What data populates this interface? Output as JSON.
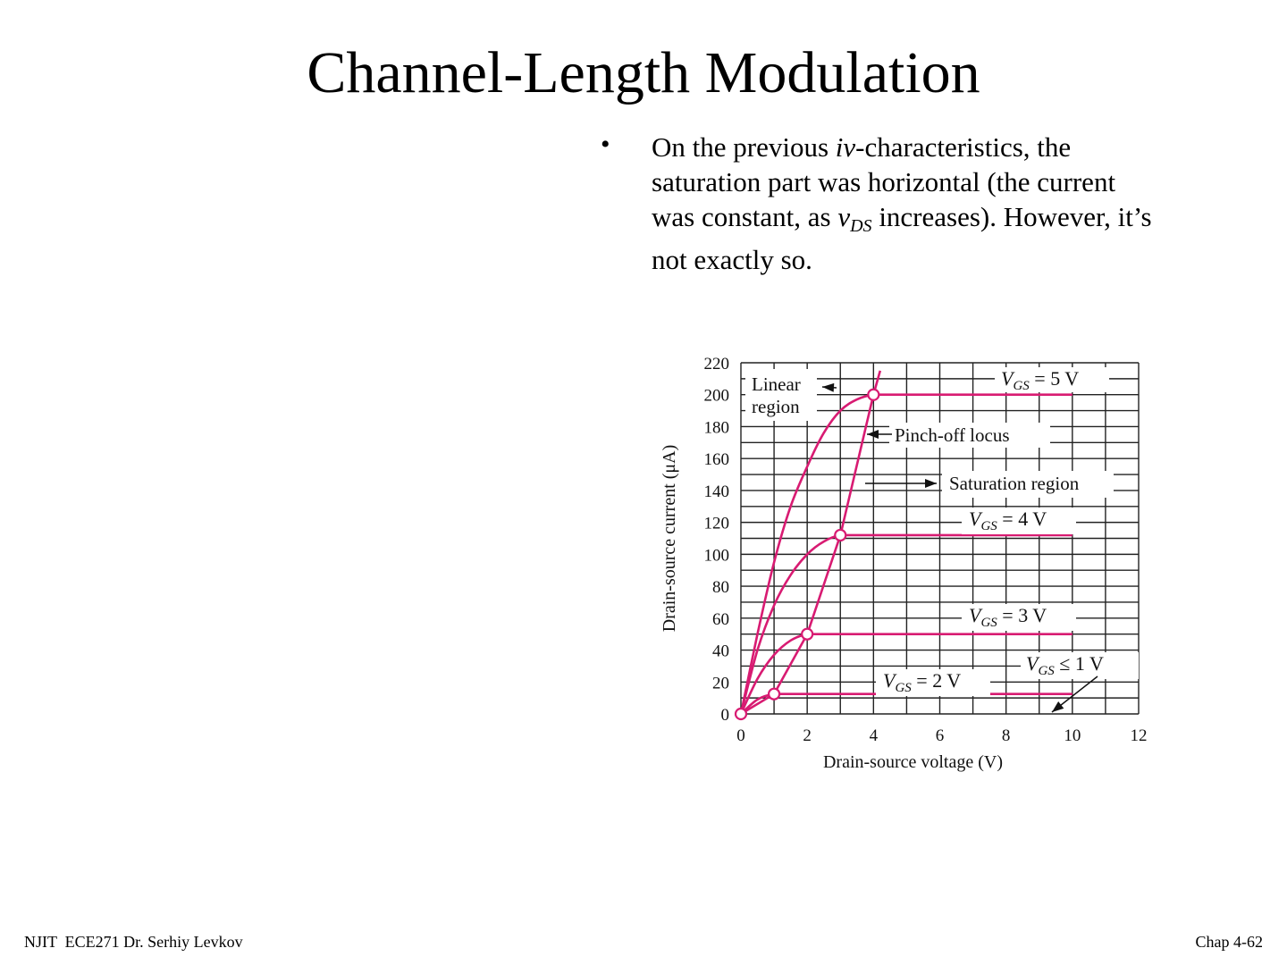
{
  "title": "Channel-Length Modulation",
  "bullet": {
    "line1_a": "On the previous ",
    "line1_iv": "iv",
    "line1_b": "-characteristics, the",
    "line2": "saturation part was horizontal (the current",
    "line3_a": "was constant, as ",
    "line3_v": "v",
    "line3_sub": "DS",
    "line3_b": " increases). However, it’s",
    "line4": "not exactly so."
  },
  "figure": {
    "accent_color": "#d81b72",
    "grid_color": "#222222",
    "y_label": "Drain-source current (μA)",
    "x_label": "Drain-source voltage (V)",
    "annotations": {
      "linear": [
        "Linear",
        "region"
      ],
      "pinchoff": "Pinch-off locus",
      "saturation": "Saturation region"
    },
    "curve_labels": [
      {
        "var": "V",
        "sub": "GS",
        "rest": " = 5 V"
      },
      {
        "var": "V",
        "sub": "GS",
        "rest": " = 4 V"
      },
      {
        "var": "V",
        "sub": "GS",
        "rest": " = 3 V"
      },
      {
        "var": "V",
        "sub": "GS",
        "rest": " = 2 V"
      },
      {
        "var": "V",
        "sub": "GS",
        "rest": " ≤ 1 V"
      }
    ]
  },
  "chart_data": {
    "type": "line",
    "xlabel": "Drain-source voltage (V)",
    "ylabel": "Drain-source current (μA)",
    "xlim": [
      0,
      12
    ],
    "ylim": [
      0,
      220
    ],
    "x_ticks": [
      0,
      2,
      4,
      6,
      8,
      10,
      12
    ],
    "y_ticks": [
      0,
      20,
      40,
      60,
      80,
      100,
      120,
      140,
      160,
      180,
      200,
      220
    ],
    "grid": true,
    "series": [
      {
        "name": "VGS = 5 V",
        "points": [
          [
            0,
            0
          ],
          [
            0.5,
            50
          ],
          [
            1,
            95
          ],
          [
            1.5,
            130
          ],
          [
            2,
            155
          ],
          [
            2.5,
            176
          ],
          [
            3,
            190
          ],
          [
            3.5,
            197
          ],
          [
            4,
            200
          ],
          [
            10,
            200
          ]
        ]
      },
      {
        "name": "VGS = 4 V",
        "points": [
          [
            0,
            0
          ],
          [
            0.5,
            40
          ],
          [
            1,
            68
          ],
          [
            1.5,
            87
          ],
          [
            2,
            100
          ],
          [
            2.5,
            108
          ],
          [
            3,
            112
          ],
          [
            10,
            112
          ]
        ]
      },
      {
        "name": "VGS = 3 V",
        "points": [
          [
            0,
            0
          ],
          [
            0.5,
            22
          ],
          [
            1,
            37
          ],
          [
            1.5,
            46
          ],
          [
            2,
            50
          ],
          [
            10,
            50
          ]
        ]
      },
      {
        "name": "VGS = 2 V",
        "points": [
          [
            0,
            0
          ],
          [
            0.5,
            9
          ],
          [
            1,
            12.5
          ],
          [
            10,
            12.5
          ]
        ]
      },
      {
        "name": "VGS ≤ 1 V",
        "points": [
          [
            0,
            0
          ],
          [
            10,
            0
          ]
        ]
      },
      {
        "name": "Pinch-off locus",
        "points": [
          [
            0,
            0
          ],
          [
            1,
            12.5
          ],
          [
            2,
            50
          ],
          [
            3,
            112
          ],
          [
            4,
            200
          ],
          [
            4.2,
            215
          ]
        ]
      }
    ],
    "pinchoff_points": [
      [
        0,
        0
      ],
      [
        1,
        12.5
      ],
      [
        2,
        50
      ],
      [
        3,
        112
      ],
      [
        4,
        200
      ]
    ]
  },
  "footer": {
    "left": "NJIT  ECE271 Dr. Serhiy Levkov",
    "right": "Chap 4-62"
  }
}
